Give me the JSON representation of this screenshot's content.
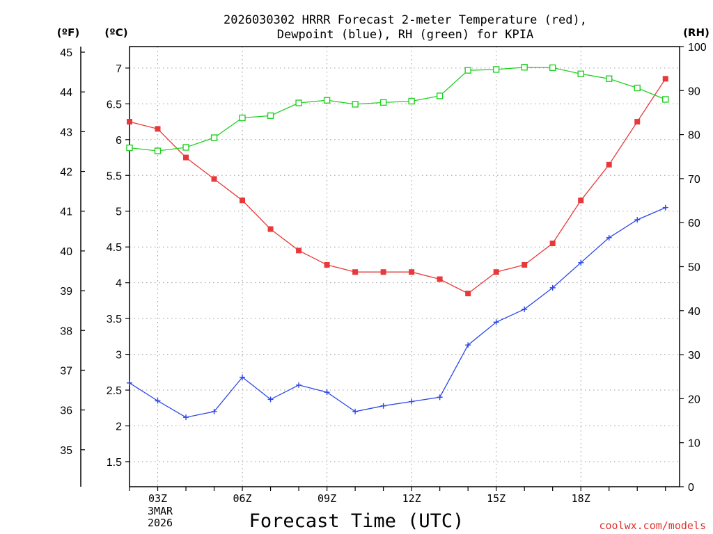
{
  "title": {
    "line1": "2026030302 HRRR Forecast 2-meter Temperature (red),",
    "line2": "Dewpoint (blue), RH (green) for KPIA"
  },
  "units": {
    "left_f": "(ºF)",
    "left_c": "(ºC)",
    "right_rh": "(RH)"
  },
  "xlabel": "Forecast Time (UTC)",
  "credit": "coolwx.com/models",
  "date_label": {
    "line1": "3MAR",
    "line2": "2026"
  },
  "colors": {
    "temperature": "#e8383a",
    "dewpoint": "#2b46e8",
    "rh": "#22d022",
    "grid": "#9a9a9a"
  },
  "chart_data": {
    "type": "line",
    "x": [
      2,
      3,
      4,
      5,
      6,
      7,
      8,
      9,
      10,
      11,
      12,
      13,
      14,
      15,
      16,
      17,
      18,
      19,
      20,
      21
    ],
    "x_range": [
      2,
      21.5
    ],
    "x_ticks": [
      {
        "hour": 3,
        "label": "03Z"
      },
      {
        "hour": 6,
        "label": "06Z"
      },
      {
        "hour": 9,
        "label": "09Z"
      },
      {
        "hour": 12,
        "label": "12Z"
      },
      {
        "hour": 15,
        "label": "15Z"
      },
      {
        "hour": 18,
        "label": "18Z"
      }
    ],
    "y_celsius": {
      "range": [
        1.15,
        7.3
      ],
      "ticks": [
        1.5,
        2,
        2.5,
        3,
        3.5,
        4,
        4.5,
        5,
        5.5,
        6,
        6.5,
        7
      ],
      "tick_labels": [
        "1.5",
        "2",
        "2.5",
        "3",
        "3.5",
        "4",
        "4.5",
        "5",
        "5.5",
        "6",
        "6.5",
        "7"
      ]
    },
    "y_fahrenheit": {
      "ticks": [
        35,
        36,
        37,
        38,
        39,
        40,
        41,
        42,
        43,
        44,
        45
      ],
      "tick_labels": [
        "35",
        "36",
        "37",
        "38",
        "39",
        "40",
        "41",
        "42",
        "43",
        "44",
        "45"
      ]
    },
    "y_rh": {
      "range": [
        0,
        100
      ],
      "ticks": [
        0,
        10,
        20,
        30,
        40,
        50,
        60,
        70,
        80,
        90,
        100
      ],
      "tick_labels": [
        "0",
        "10",
        "20",
        "30",
        "40",
        "50",
        "60",
        "70",
        "80",
        "90",
        "100"
      ]
    },
    "series": [
      {
        "name": "Temperature",
        "axis": "celsius",
        "marker": "filled-square",
        "color": "#e8383a",
        "values": [
          6.25,
          6.15,
          5.75,
          5.45,
          5.15,
          4.75,
          4.45,
          4.25,
          4.15,
          4.15,
          4.15,
          4.05,
          3.85,
          4.15,
          4.25,
          4.55,
          5.15,
          5.65,
          6.25,
          6.85
        ]
      },
      {
        "name": "Dewpoint",
        "axis": "celsius",
        "marker": "plus",
        "color": "#2b46e8",
        "values": [
          2.6,
          2.35,
          2.12,
          2.2,
          2.68,
          2.37,
          2.57,
          2.47,
          2.2,
          2.28,
          2.34,
          2.4,
          3.13,
          3.45,
          3.63,
          3.93,
          4.28,
          4.63,
          4.88,
          5.05
        ]
      },
      {
        "name": "RH",
        "axis": "rh",
        "marker": "open-square",
        "color": "#22d022",
        "values": [
          77,
          76.3,
          77.1,
          79.3,
          83.8,
          84.3,
          87.2,
          87.8,
          86.9,
          87.3,
          87.6,
          88.8,
          94.6,
          94.8,
          95.3,
          95.2,
          93.8,
          92.7,
          90.6,
          88
        ]
      }
    ]
  }
}
